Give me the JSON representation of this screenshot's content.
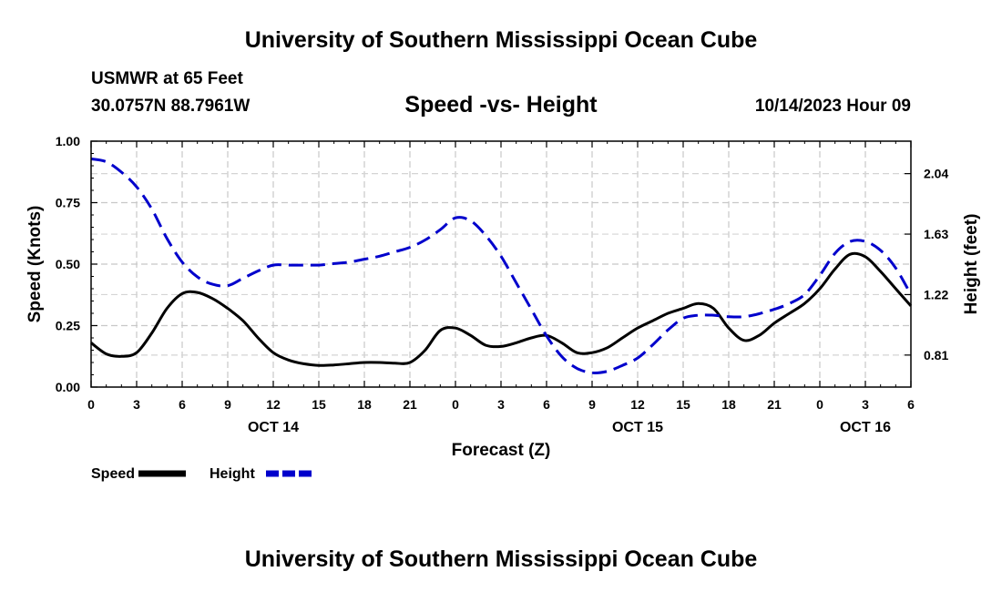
{
  "header": {
    "title": "University of Southern Mississippi Ocean Cube",
    "station": "USMWR at 65 Feet",
    "coordinates": "30.0757N  88.7961W",
    "timestamp": "10/14/2023 Hour 09"
  },
  "footer": {
    "title": "University of Southern Mississippi Ocean Cube"
  },
  "chart_data": {
    "type": "line",
    "title": "Speed -vs- Height",
    "xlabel": "Forecast (Z)",
    "ylabel": "Speed (Knots)",
    "y2label": "Height (feet)",
    "xlim": [
      0,
      54
    ],
    "ylim": [
      0,
      1.0
    ],
    "y2lim": [
      0.593,
      2.26
    ],
    "grid": true,
    "x_ticks": [
      0,
      3,
      6,
      9,
      12,
      15,
      18,
      21,
      24,
      27,
      30,
      33,
      36,
      39,
      42,
      45,
      48,
      51,
      54
    ],
    "x_tick_labels": [
      "0",
      "3",
      "6",
      "9",
      "12",
      "15",
      "18",
      "21",
      "0",
      "3",
      "6",
      "9",
      "12",
      "15",
      "18",
      "21",
      "0",
      "3",
      "6"
    ],
    "date_labels": [
      {
        "x": 12,
        "label": "OCT 14"
      },
      {
        "x": 36,
        "label": "OCT 15"
      },
      {
        "x": 51,
        "label": "OCT 16"
      }
    ],
    "y_ticks": [
      0.0,
      0.25,
      0.5,
      0.75,
      1.0
    ],
    "y_tick_labels": [
      "0.00",
      "0.25",
      "0.50",
      "0.75",
      "1.00"
    ],
    "y2_ticks": [
      0.81,
      1.22,
      1.63,
      2.04
    ],
    "y2_tick_labels": [
      "0.81",
      "1.22",
      "1.63",
      "2.04"
    ],
    "series": [
      {
        "name": "Speed",
        "axis": "left",
        "color": "#000000",
        "dash": "solid",
        "x": [
          0,
          1,
          2,
          3,
          4,
          5,
          6,
          7,
          8,
          9,
          10,
          11,
          12,
          13,
          14,
          15,
          16,
          17,
          18,
          19,
          20,
          21,
          22,
          23,
          24,
          25,
          26,
          27,
          28,
          29,
          30,
          31,
          32,
          33,
          34,
          35,
          36,
          37,
          38,
          39,
          40,
          41,
          42,
          43,
          44,
          45,
          46,
          47,
          48,
          49,
          50,
          51,
          52,
          53,
          54
        ],
        "values": [
          0.18,
          0.135,
          0.125,
          0.14,
          0.22,
          0.32,
          0.38,
          0.385,
          0.36,
          0.32,
          0.27,
          0.2,
          0.14,
          0.11,
          0.095,
          0.088,
          0.09,
          0.095,
          0.1,
          0.1,
          0.097,
          0.1,
          0.15,
          0.23,
          0.24,
          0.21,
          0.17,
          0.165,
          0.18,
          0.2,
          0.21,
          0.18,
          0.14,
          0.14,
          0.16,
          0.2,
          0.24,
          0.27,
          0.3,
          0.32,
          0.34,
          0.32,
          0.24,
          0.19,
          0.21,
          0.26,
          0.3,
          0.34,
          0.4,
          0.48,
          0.54,
          0.53,
          0.47,
          0.4,
          0.33
        ]
      },
      {
        "name": "Height",
        "axis": "right",
        "color": "#0000cc",
        "dash": "dashed",
        "x": [
          0,
          1,
          2,
          3,
          4,
          5,
          6,
          7,
          8,
          9,
          10,
          11,
          12,
          13,
          14,
          15,
          16,
          17,
          18,
          19,
          20,
          21,
          22,
          23,
          24,
          25,
          26,
          27,
          28,
          29,
          30,
          31,
          32,
          33,
          34,
          35,
          36,
          37,
          38,
          39,
          40,
          41,
          42,
          43,
          44,
          45,
          46,
          47,
          48,
          49,
          50,
          51,
          52,
          53,
          54
        ],
        "values": [
          2.14,
          2.12,
          2.05,
          1.95,
          1.8,
          1.6,
          1.44,
          1.34,
          1.29,
          1.28,
          1.33,
          1.38,
          1.42,
          1.42,
          1.42,
          1.42,
          1.43,
          1.44,
          1.46,
          1.48,
          1.51,
          1.54,
          1.59,
          1.66,
          1.74,
          1.72,
          1.62,
          1.48,
          1.3,
          1.12,
          0.94,
          0.8,
          0.72,
          0.69,
          0.7,
          0.74,
          0.79,
          0.88,
          0.98,
          1.06,
          1.08,
          1.08,
          1.07,
          1.07,
          1.09,
          1.12,
          1.16,
          1.22,
          1.35,
          1.5,
          1.58,
          1.58,
          1.52,
          1.4,
          1.22
        ]
      }
    ],
    "legend": [
      {
        "label": "Speed",
        "color": "#000000",
        "dash": "solid"
      },
      {
        "label": "Height",
        "color": "#0000cc",
        "dash": "dashed"
      }
    ]
  }
}
